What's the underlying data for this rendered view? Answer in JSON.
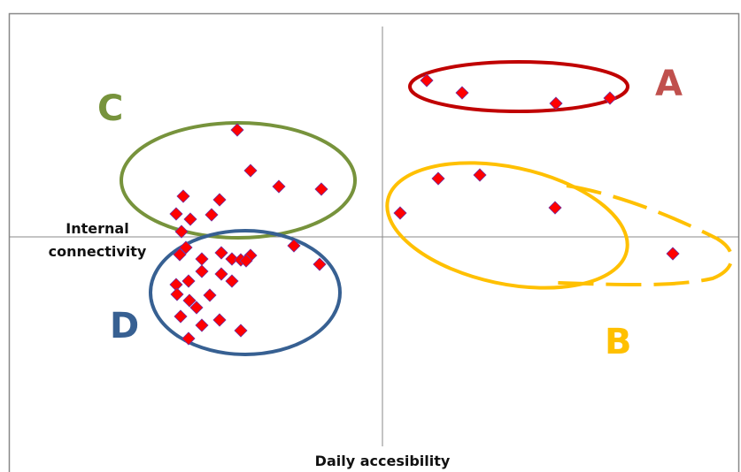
{
  "chart_data": {
    "type": "scatter",
    "x_label": "Daily accesibility",
    "y_label": "Internal connectivity",
    "annotations": [
      "A",
      "B",
      "C",
      "D"
    ],
    "xlim": [
      -422,
      403
    ],
    "ylim": [
      -266,
      253
    ],
    "series": [
      {
        "color": "#ff0000",
        "x": [
          50,
          90,
          196,
          257,
          20,
          63,
          110,
          195,
          328,
          -164,
          -149,
          -117,
          -69,
          -225,
          -184,
          -233,
          -217,
          -193,
          -227,
          -222,
          -229,
          -204,
          -182,
          -170,
          -160,
          -149,
          -154,
          -100,
          -71,
          -182,
          -170,
          -204,
          -219,
          -233,
          -232,
          -195,
          -218,
          -210,
          -228,
          -204,
          -184,
          -160,
          -219
        ],
        "values": [
          177,
          163,
          151,
          157,
          27,
          66,
          70,
          33,
          -19,
          121,
          75,
          57,
          54,
          46,
          42,
          26,
          20,
          25,
          6,
          -12,
          -20,
          -25,
          -18,
          -25,
          -26,
          -21,
          -27,
          -10,
          -31,
          -42,
          -50,
          -39,
          -50,
          -54,
          -65,
          -66,
          -72,
          -80,
          -90,
          -100,
          -94,
          -106,
          -115
        ]
      }
    ]
  }
}
